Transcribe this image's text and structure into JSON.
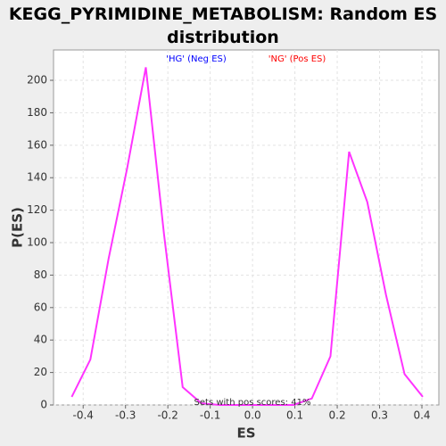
{
  "chart_data": {
    "type": "line",
    "title": "KEGG_PYRIMIDINE_METABOLISM: Random ES distribution",
    "x_label": "ES",
    "y_label": "P(ES)",
    "x": [
      -0.427,
      -0.383,
      -0.34,
      -0.296,
      -0.252,
      -0.209,
      -0.165,
      -0.121,
      -0.078,
      -0.034,
      0.009,
      0.053,
      0.097,
      0.14,
      0.184,
      0.228,
      0.271,
      0.315,
      0.359,
      0.402
    ],
    "series": [
      {
        "color": "#ff33ff",
        "values": [
          5,
          28,
          90,
          146,
          208,
          105,
          11,
          1,
          0,
          0,
          0,
          0,
          0,
          4,
          30,
          156,
          125,
          68,
          19,
          5
        ]
      }
    ],
    "xlim": [
      -0.47,
      0.44
    ],
    "ylim": [
      0,
      218.7
    ],
    "xticks": [
      -0.4,
      -0.3,
      -0.2,
      -0.1,
      {
        "value": 0,
        "label": "0.0"
      },
      0.1,
      0.2,
      0.3,
      0.4
    ],
    "yticks": [
      0,
      20,
      40,
      60,
      80,
      100,
      120,
      140,
      160,
      180,
      200
    ],
    "grid": true,
    "annotations": [
      {
        "text": "'HG' (Neg ES)",
        "color": "#0000ff"
      },
      {
        "text": "'NG' (Pos ES)",
        "color": "#ff0000"
      },
      {
        "text": "Sets with pos scores: 41%",
        "color": "#333333"
      }
    ]
  }
}
